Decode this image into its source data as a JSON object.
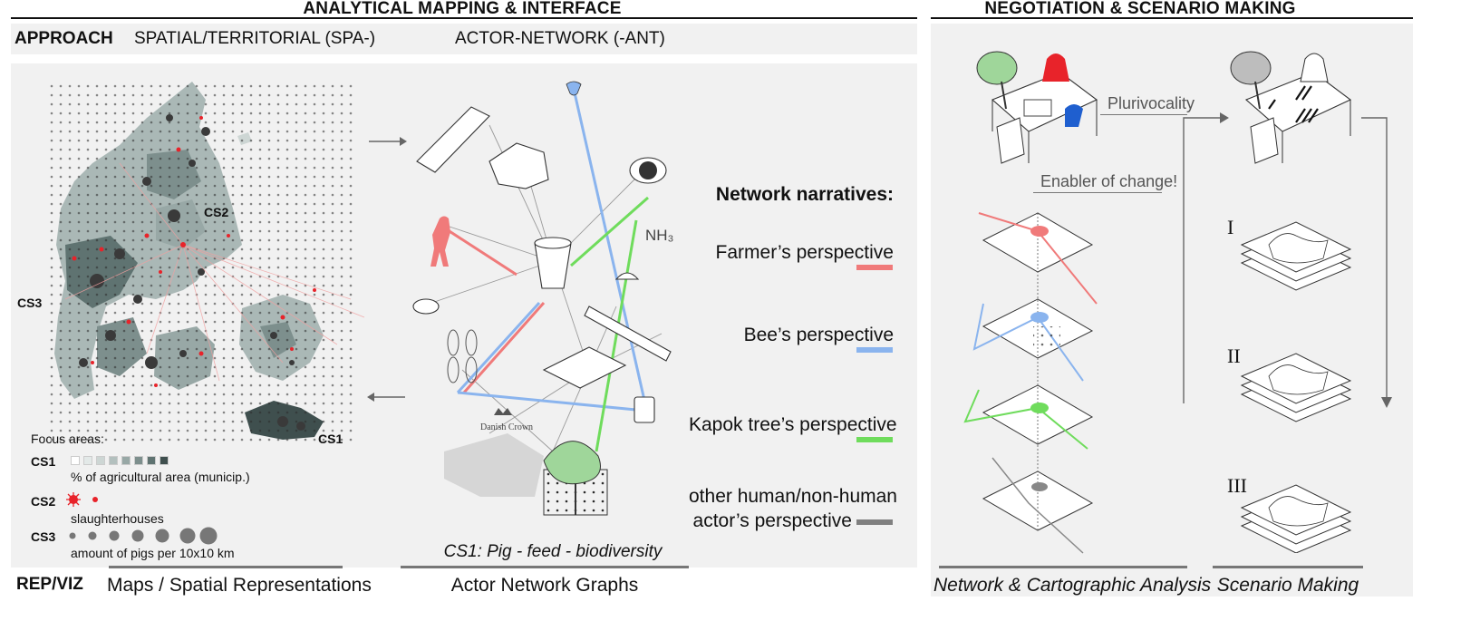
{
  "headers": {
    "left": "ANALYTICAL MAPPING & INTERFACE",
    "right": "NEGOTIATION & SCENARIO MAKING"
  },
  "approach": {
    "title": "APPROACH",
    "spatial": "SPATIAL/TERRITORIAL (SPA-)",
    "actor": "ACTOR-NETWORK (-ANT)"
  },
  "map": {
    "labels": {
      "cs1": "CS1",
      "cs2": "CS2",
      "cs3": "CS3"
    },
    "legend": {
      "title": "Focus areas:",
      "cs1_key": "CS1",
      "cs1_desc": "% of agricultural area (municip.)",
      "cs2_key": "CS2",
      "cs2_desc": "slaughterhouses",
      "cs3_key": "CS3",
      "cs3_desc": "amount of pigs per 10x10 km",
      "swatches": [
        "#ffffff",
        "#e3e9e8",
        "#cdd6d4",
        "#b3c0be",
        "#98a8a6",
        "#7d8f8d",
        "#5f7371",
        "#3f4f4e"
      ]
    }
  },
  "network": {
    "caption": "CS1: Pig - feed - biodiversity",
    "brand": "Danish Crown",
    "chem": "NH₃"
  },
  "narratives": {
    "title": "Network narratives:",
    "items": [
      {
        "label": "Farmer’s perspective",
        "color": "#f07a7a"
      },
      {
        "label": "Bee’s perspective",
        "color": "#8ab4ee"
      },
      {
        "label": "Kapok tree’s perspective",
        "color": "#6fdc5c"
      },
      {
        "label": "other human/non-human",
        "label2": "actor’s perspective",
        "color": "#808080"
      }
    ]
  },
  "negotiation": {
    "plurivocality": "Plurivocality",
    "enabler": "Enabler of change!",
    "romans": [
      "I",
      "II",
      "III"
    ]
  },
  "footer": {
    "repviz": "REP/VIZ",
    "maps": "Maps / Spatial Representations",
    "graphs": "Actor Network Graphs",
    "network_analysis": "Network & Cartographic Analysis",
    "scenario": "Scenario Making"
  },
  "colors": {
    "red": "#e8232a",
    "blue": "#8ab4ee",
    "green": "#6fdc5c",
    "grey_dark": "#3f4f4e",
    "band": "#f1f1f1"
  }
}
